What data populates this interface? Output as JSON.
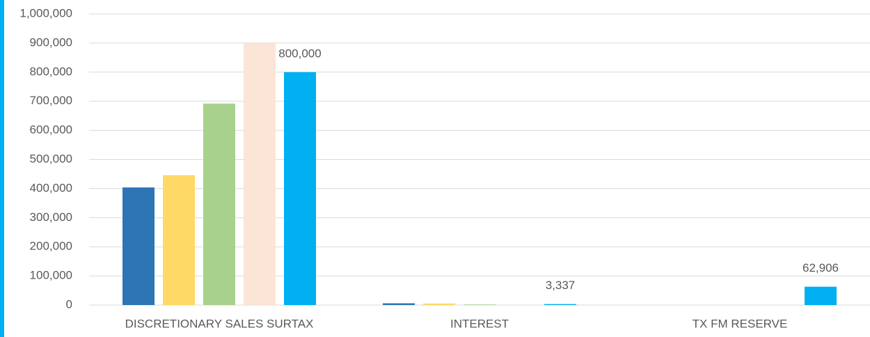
{
  "chart_data": {
    "type": "bar",
    "categories": [
      "DISCRETIONARY SALES SURTAX",
      "INTEREST",
      "TX FM RESERVE"
    ],
    "series": [
      {
        "color": "#2e75b6",
        "values": [
          404000,
          6000,
          0
        ]
      },
      {
        "color": "#ffd966",
        "values": [
          446000,
          5500,
          0
        ]
      },
      {
        "color": "#a9d18e",
        "values": [
          692000,
          2000,
          0
        ]
      },
      {
        "color": "#fbe5d6",
        "values": [
          900000,
          500,
          0
        ]
      },
      {
        "color": "#00b0f0",
        "values": [
          800000,
          3337,
          62906
        ],
        "value_labels": [
          "800,000",
          "3,337",
          "62,906"
        ]
      }
    ],
    "ylim": [
      0,
      1000000
    ],
    "yticks": [
      0,
      {
        "value": 100000,
        "label": "100,000"
      },
      {
        "value": 200000,
        "label": "200,000"
      },
      {
        "value": 300000,
        "label": "300,000"
      },
      {
        "value": 400000,
        "label": "400,000"
      },
      {
        "value": 500000,
        "label": "500,000"
      },
      {
        "value": 600000,
        "label": "600,000"
      },
      {
        "value": 700000,
        "label": "700,000"
      },
      {
        "value": 800000,
        "label": "800,000"
      },
      {
        "value": 900000,
        "label": "900,000"
      },
      {
        "value": 1000000,
        "label": "1,000,000"
      }
    ],
    "grid": true
  }
}
